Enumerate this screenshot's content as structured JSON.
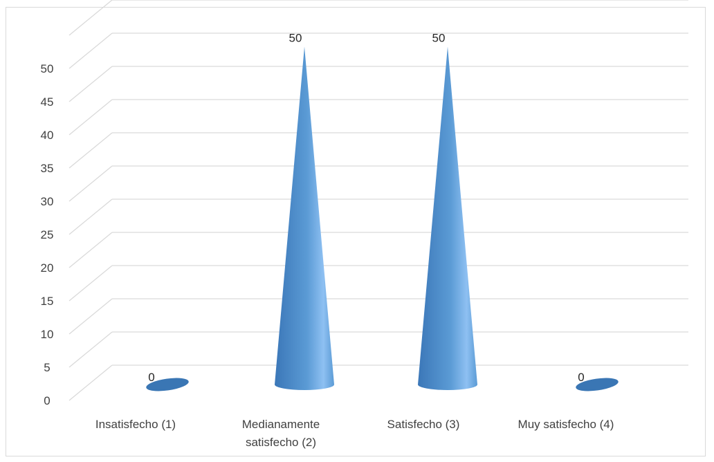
{
  "chart_data": {
    "type": "bar",
    "shape": "cone-3d",
    "categories": [
      [
        "Insatisfecho (1)"
      ],
      [
        "Medianamente",
        "satisfecho (2)"
      ],
      [
        "Satisfecho (3)"
      ],
      [
        "Muy satisfecho (4)"
      ]
    ],
    "values": [
      0,
      50,
      50,
      0
    ],
    "data_labels": [
      "0",
      "50",
      "50",
      "0"
    ],
    "title": "",
    "xlabel": "",
    "ylabel": "",
    "ylim": [
      0,
      50
    ],
    "yticks": [
      "0",
      "5",
      "10",
      "15",
      "20",
      "25",
      "30",
      "35",
      "40",
      "45",
      "50"
    ],
    "grid": true,
    "legend": "none",
    "colors": {
      "cone_base": "#5b9bd5",
      "cone_light": "#8ec0f2",
      "cone_dark": "#3b77b8",
      "flat_base": "#3a76b4",
      "grid": "#d9d9d9",
      "frame": "#d9d9d9",
      "text": "#404040"
    }
  }
}
